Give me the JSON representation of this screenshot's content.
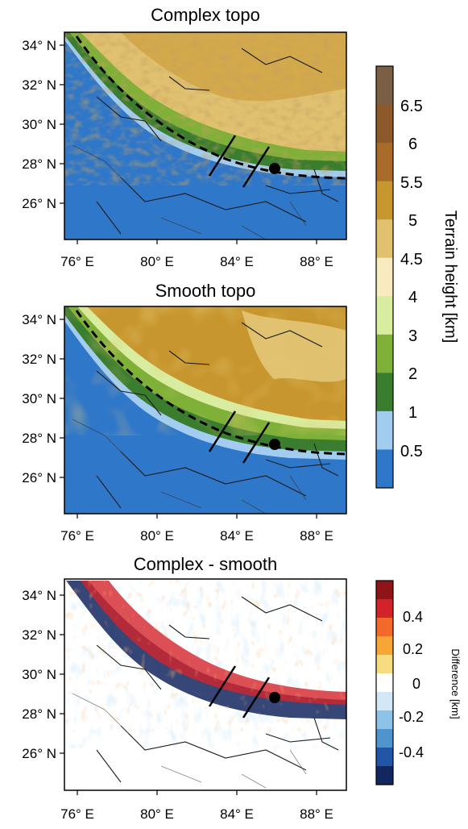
{
  "panels": [
    {
      "title": "Complex topo",
      "x_ticks": [
        "76° E",
        "80° E",
        "84° E",
        "88° E"
      ],
      "y_ticks": [
        "34° N",
        "32° N",
        "30° N",
        "28° N",
        "26° N"
      ]
    },
    {
      "title": "Smooth topo",
      "x_ticks": [
        "76° E",
        "80° E",
        "84° E",
        "88° E"
      ],
      "y_ticks": [
        "34° N",
        "32° N",
        "30° N",
        "28° N",
        "26° N"
      ]
    },
    {
      "title": "Complex - smooth",
      "x_ticks": [
        "76° E",
        "80° E",
        "84° E",
        "88° E"
      ],
      "y_ticks": [
        "34° N",
        "32° N",
        "30° N",
        "28° N",
        "26° N"
      ]
    }
  ],
  "terrain_colorbar": {
    "label": "Terrain height [km]",
    "tick_labels": [
      "6.5",
      "6",
      "5.5",
      "5",
      "4.5",
      "4",
      "3",
      "2",
      "1",
      "0.5"
    ],
    "colors": [
      "#7a5f44",
      "#8c5a2a",
      "#a86b2a",
      "#c8962e",
      "#e0c170",
      "#f7ecc0",
      "#d8eda0",
      "#7fb038",
      "#3b7d2e",
      "#a3cdf0",
      "#2f77c9"
    ]
  },
  "difference_colorbar": {
    "label": "Difference [km]",
    "tick_labels": [
      "0.4",
      "0.2",
      "0",
      "-0.2",
      "-0.4"
    ],
    "colors": [
      "#8e1418",
      "#d3232a",
      "#f26a2a",
      "#f6a634",
      "#f8dc82",
      "#ffffff",
      "#d3e8f6",
      "#8ec3e8",
      "#4f94cc",
      "#2355a6",
      "#12265f"
    ]
  },
  "map_colors": {
    "ocean": "#2f77c9",
    "plains_edge": "#a3cdf0",
    "foothill_dark": "#3b7d2e",
    "foothill_light": "#7fb038",
    "plateau": "#e0c170",
    "plateau_high": "#c8962e",
    "ridges": "#a86b2a"
  }
}
